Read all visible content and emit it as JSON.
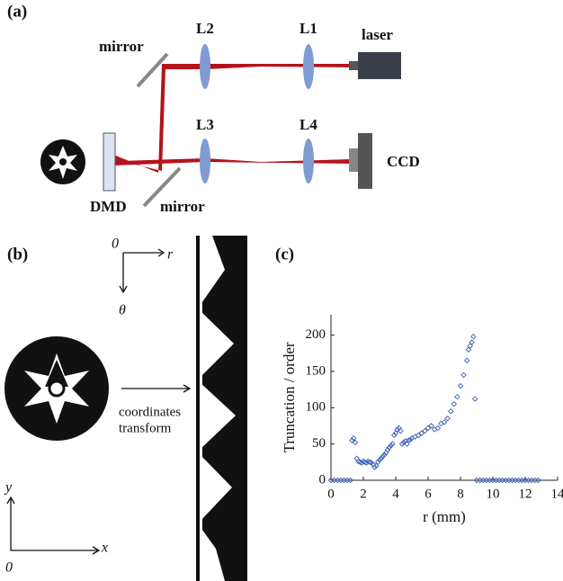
{
  "panel_a": {
    "label": "(a)",
    "mirror_top": "mirror",
    "lens_2": "L2",
    "lens_1": "L1",
    "laser": "laser",
    "lens_3": "L3",
    "lens_4": "L4",
    "ccd": "CCD",
    "dmd": "DMD",
    "mirror_bottom": "mirror"
  },
  "panel_b": {
    "label": "(b)",
    "polar_origin": "0",
    "polar_r": "r",
    "polar_theta": "θ",
    "transform_line1": "coordinates",
    "transform_line2": "transform",
    "cart_y": "y",
    "cart_x": "x",
    "cart_origin": "0"
  },
  "panel_c": {
    "label": "(c)"
  },
  "chart_data": {
    "type": "scatter",
    "xlabel": "r (mm)",
    "ylabel": "Truncation / order",
    "color": "#3a5fb0",
    "xlim": [
      0,
      14
    ],
    "ylim": [
      0,
      228
    ],
    "xticks": [
      0,
      2,
      4,
      6,
      8,
      10,
      12,
      14
    ],
    "yticks": [
      0,
      50,
      100,
      150,
      200
    ],
    "x": [
      0,
      0.2,
      0.4,
      0.6,
      0.8,
      1.0,
      1.2,
      1.3,
      1.4,
      1.5,
      1.6,
      1.7,
      1.8,
      1.9,
      2.0,
      2.1,
      2.2,
      2.3,
      2.4,
      2.5,
      2.6,
      2.7,
      2.8,
      2.9,
      3.0,
      3.1,
      3.2,
      3.3,
      3.4,
      3.5,
      3.6,
      3.7,
      3.8,
      3.9,
      4.0,
      4.1,
      4.2,
      4.3,
      4.4,
      4.5,
      4.6,
      4.7,
      4.8,
      4.9,
      5.0,
      5.2,
      5.4,
      5.6,
      5.8,
      6.0,
      6.2,
      6.4,
      6.6,
      6.8,
      7.0,
      7.2,
      7.4,
      7.6,
      7.8,
      8.0,
      8.2,
      8.4,
      8.5,
      8.6,
      8.7,
      8.8,
      8.9,
      9.0,
      9.2,
      9.4,
      9.6,
      9.8,
      10.0,
      10.2,
      10.4,
      10.6,
      10.8,
      11.0,
      11.2,
      11.4,
      11.6,
      11.8,
      12.0,
      12.2,
      12.4,
      12.6,
      12.8
    ],
    "values": [
      0,
      0,
      0,
      0,
      0,
      0,
      0,
      55,
      58,
      52,
      30,
      26,
      25,
      24,
      26,
      25,
      24,
      26,
      25,
      24,
      22,
      18,
      20,
      25,
      28,
      30,
      33,
      35,
      38,
      42,
      45,
      48,
      50,
      62,
      65,
      70,
      72,
      68,
      50,
      52,
      54,
      50,
      55,
      56,
      58,
      60,
      62,
      65,
      68,
      72,
      75,
      70,
      72,
      78,
      80,
      85,
      95,
      105,
      115,
      130,
      145,
      165,
      180,
      185,
      190,
      198,
      112,
      0,
      0,
      0,
      0,
      0,
      0,
      0,
      0,
      0,
      0,
      0,
      0,
      0,
      0,
      0,
      0,
      0,
      0,
      0,
      0
    ]
  }
}
